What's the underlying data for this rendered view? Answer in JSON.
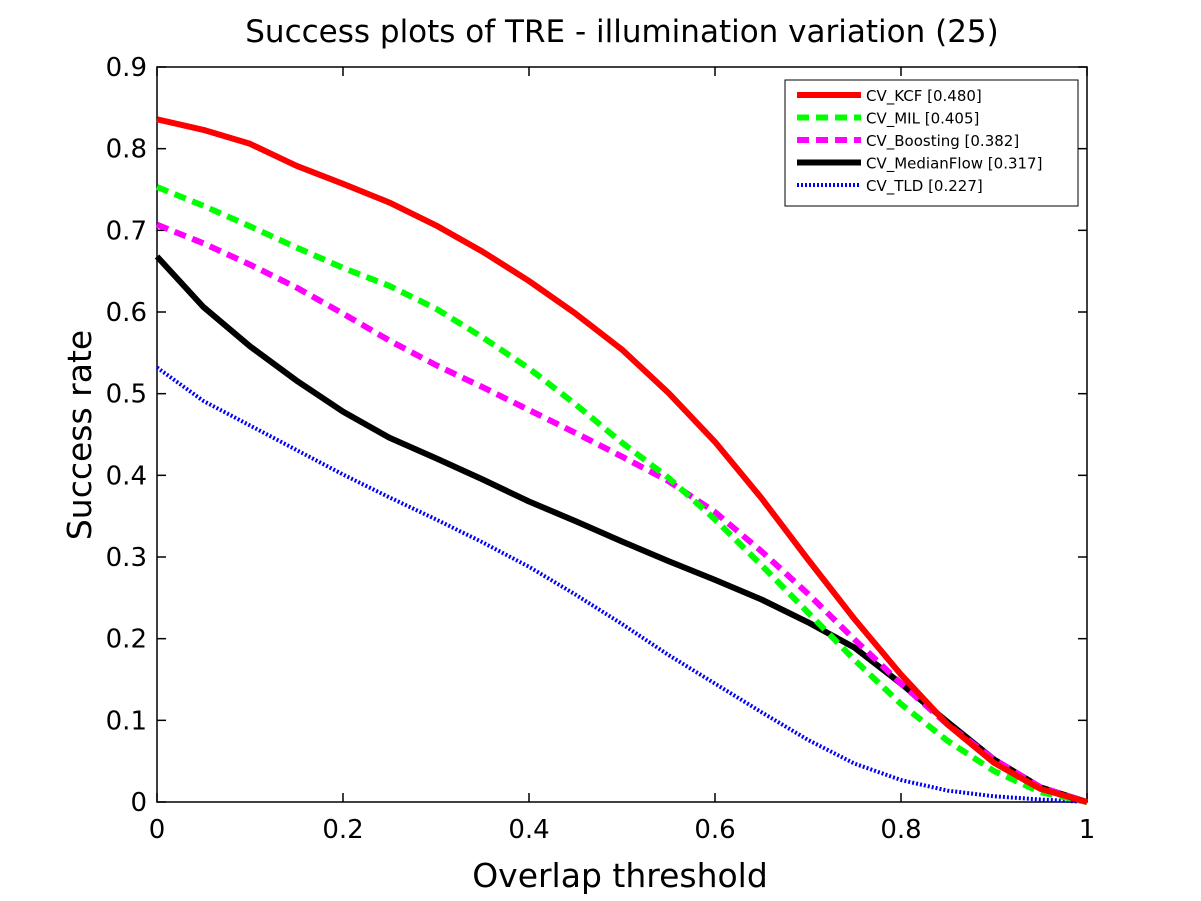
{
  "chart_data": {
    "type": "line",
    "title": "Success plots of TRE - illumination variation (25)",
    "xlabel": "Overlap threshold",
    "ylabel": "Success rate",
    "xlim": [
      0,
      1
    ],
    "ylim": [
      0,
      0.9
    ],
    "xticks": [
      0,
      0.2,
      0.4,
      0.6,
      0.8,
      1
    ],
    "xtick_labels": [
      "0",
      "0.2",
      "0.4",
      "0.6",
      "0.8",
      "1"
    ],
    "yticks": [
      0,
      0.1,
      0.2,
      0.3,
      0.4,
      0.5,
      0.6,
      0.7,
      0.8,
      0.9
    ],
    "ytick_labels": [
      "0",
      "0.1",
      "0.2",
      "0.3",
      "0.4",
      "0.5",
      "0.6",
      "0.7",
      "0.8",
      "0.9"
    ],
    "grid": false,
    "legend_position": "top-right",
    "x": [
      0,
      0.05,
      0.1,
      0.15,
      0.2,
      0.25,
      0.3,
      0.35,
      0.4,
      0.45,
      0.5,
      0.55,
      0.6,
      0.65,
      0.7,
      0.75,
      0.8,
      0.85,
      0.9,
      0.95,
      1
    ],
    "series": [
      {
        "name": "CV_KCF [0.480]",
        "color": "#ff0000",
        "style": "solid",
        "values": [
          0.836,
          0.823,
          0.806,
          0.779,
          0.757,
          0.734,
          0.706,
          0.674,
          0.638,
          0.598,
          0.554,
          0.501,
          0.441,
          0.372,
          0.297,
          0.224,
          0.156,
          0.095,
          0.048,
          0.016,
          0.0
        ]
      },
      {
        "name": "CV_MIL [0.405]",
        "color": "#00ff00",
        "style": "dashed",
        "values": [
          0.753,
          0.73,
          0.705,
          0.679,
          0.654,
          0.632,
          0.604,
          0.569,
          0.531,
          0.487,
          0.44,
          0.397,
          0.346,
          0.29,
          0.232,
          0.174,
          0.12,
          0.075,
          0.038,
          0.012,
          0.0
        ]
      },
      {
        "name": "CV_Boosting [0.382]",
        "color": "#ff00ff",
        "style": "dashed",
        "values": [
          0.707,
          0.684,
          0.658,
          0.63,
          0.598,
          0.565,
          0.535,
          0.508,
          0.48,
          0.452,
          0.423,
          0.393,
          0.355,
          0.307,
          0.255,
          0.199,
          0.145,
          0.095,
          0.052,
          0.018,
          0.0
        ]
      },
      {
        "name": "CV_MedianFlow [0.317]",
        "color": "#000000",
        "style": "solid",
        "values": [
          0.668,
          0.606,
          0.558,
          0.516,
          0.478,
          0.446,
          0.421,
          0.395,
          0.368,
          0.344,
          0.319,
          0.295,
          0.272,
          0.248,
          0.22,
          0.189,
          0.145,
          0.098,
          0.052,
          0.018,
          0.0
        ]
      },
      {
        "name": "CV_TLD [0.227]",
        "color": "#0000ff",
        "style": "dotted",
        "values": [
          0.532,
          0.491,
          0.461,
          0.431,
          0.401,
          0.373,
          0.346,
          0.318,
          0.288,
          0.254,
          0.218,
          0.18,
          0.145,
          0.11,
          0.076,
          0.047,
          0.027,
          0.014,
          0.007,
          0.003,
          0.0
        ]
      }
    ]
  }
}
